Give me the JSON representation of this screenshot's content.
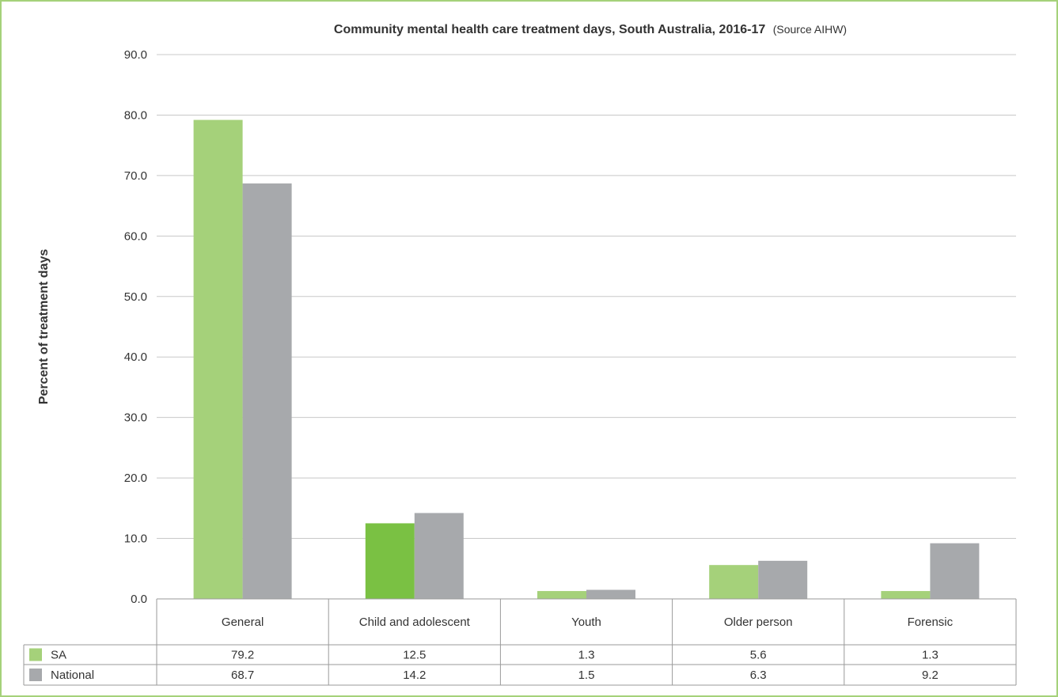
{
  "chart_data": {
    "type": "bar",
    "title": "Community mental health care treatment days, South Australia, 2016-17",
    "subtitle": "(Source AIHW)",
    "ylabel": "Percent of treatment days",
    "xlabel": "",
    "ylim": [
      0,
      90
    ],
    "yticks": [
      "0.0",
      "10.0",
      "20.0",
      "30.0",
      "40.0",
      "50.0",
      "60.0",
      "70.0",
      "80.0",
      "90.0"
    ],
    "grid": true,
    "categories": [
      "General",
      "Child and adolescent",
      "Youth",
      "Older person",
      "Forensic"
    ],
    "series": [
      {
        "name": "SA",
        "color": "#a5d17a",
        "values": [
          79.2,
          12.5,
          1.3,
          5.6,
          1.3
        ],
        "labels": [
          "79.2",
          "12.5",
          "1.3",
          "5.6",
          "1.3"
        ]
      },
      {
        "name": "National",
        "color": "#a7a9ac",
        "values": [
          68.7,
          14.2,
          1.5,
          6.3,
          9.2
        ],
        "labels": [
          "68.7",
          "14.2",
          "1.5",
          "6.3",
          "9.2"
        ]
      }
    ],
    "highlight": {
      "series": 0,
      "category": 1,
      "color": "#7ac143"
    },
    "data_table": true
  }
}
